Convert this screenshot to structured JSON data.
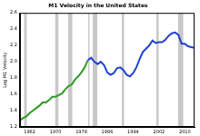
{
  "chart_data": {
    "type": "line",
    "title": "M1 Velocity in the United States",
    "y_label": "Log M1 Velocity",
    "x": [
      1959,
      1960,
      1961,
      1962,
      1963,
      1964,
      1965,
      1966,
      1967,
      1968,
      1969,
      1970,
      1971,
      1972,
      1973,
      1974,
      1975,
      1976,
      1977,
      1978,
      1979,
      1980,
      1981,
      1982,
      1983,
      1984,
      1985,
      1986,
      1987,
      1988,
      1989,
      1990,
      1991,
      1992,
      1993,
      1994,
      1995,
      1996,
      1997,
      1998,
      1999,
      2000,
      2001,
      2002,
      2003,
      2004,
      2005,
      2006,
      2007,
      2008,
      2009,
      2010,
      2011,
      2012,
      2013
    ],
    "series": [
      {
        "color": "#2e9a23",
        "values": [
          1.28,
          1.31,
          1.33,
          1.37,
          1.4,
          1.43,
          1.46,
          1.5,
          1.5,
          1.53,
          1.57,
          1.57,
          1.59,
          1.61,
          1.66,
          1.7,
          1.72,
          1.78,
          1.82,
          1.87,
          1.93,
          2.02,
          null,
          null,
          null,
          null,
          null,
          null,
          null,
          null,
          null,
          null,
          null,
          null,
          null,
          null,
          null,
          null,
          null,
          null,
          null,
          null,
          null,
          null,
          null,
          null,
          null,
          null,
          null,
          null,
          null,
          null,
          null,
          null,
          null
        ]
      },
      {
        "color": "#2040d0",
        "values": [
          null,
          null,
          null,
          null,
          null,
          null,
          null,
          null,
          null,
          null,
          null,
          null,
          null,
          null,
          null,
          null,
          null,
          null,
          null,
          null,
          null,
          2.02,
          2.05,
          2.0,
          1.97,
          2.0,
          1.96,
          1.87,
          1.84,
          1.86,
          1.92,
          1.93,
          1.9,
          1.84,
          1.82,
          1.86,
          1.93,
          2.03,
          2.12,
          2.16,
          2.2,
          2.26,
          2.23,
          2.24,
          2.24,
          2.27,
          2.32,
          2.35,
          2.36,
          2.33,
          2.22,
          2.22,
          2.19,
          2.18,
          2.17
        ]
      }
    ],
    "recessions": [
      [
        1960.3,
        1961.1
      ],
      [
        1969.9,
        1970.9
      ],
      [
        1973.9,
        1975.2
      ],
      [
        1980.1,
        1980.5
      ],
      [
        1981.5,
        1982.9
      ],
      [
        1990.5,
        1991.2
      ],
      [
        2001.2,
        2001.9
      ],
      [
        2007.9,
        2009.5
      ]
    ],
    "recession_color": "#c8c8c8",
    "xlim": [
      1959,
      2013
    ],
    "xticks": [
      1962,
      1970,
      1978,
      1986,
      1994,
      2002,
      2010
    ],
    "ylim": [
      1.2,
      2.6
    ],
    "yticks": [
      1.2,
      1.4,
      1.6,
      1.8,
      2.0,
      2.2,
      2.4,
      2.6
    ],
    "grid": false
  }
}
